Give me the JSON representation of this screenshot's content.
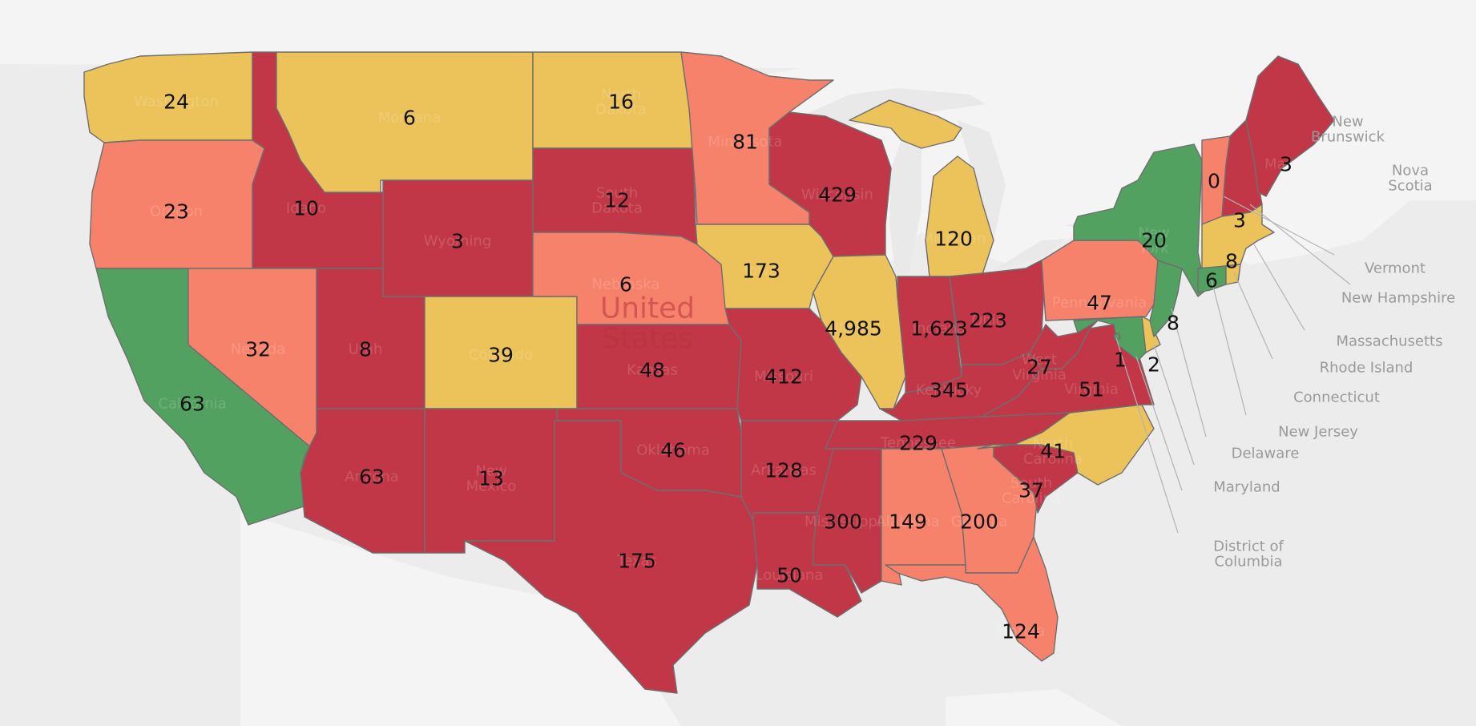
{
  "colors": {
    "dark_red": "#c13747",
    "salmon": "#f7826c",
    "yellow": "#ecc25a",
    "green": "#52a160",
    "land": "#f4f4f4",
    "water": "#e9e9e9",
    "lake": "#e4e4e4"
  },
  "map": {
    "country_label": [
      "United",
      "States"
    ],
    "neighbor_labels": {
      "new_brunswick": [
        "New",
        "Brunswick"
      ],
      "nova_scotia": [
        "Nova",
        "Scotia"
      ]
    },
    "callouts": {
      "vermont": "Vermont",
      "new_hampshire": "New Hampshire",
      "massachusetts": "Massachusetts",
      "rhode_island": "Rhode Island",
      "connecticut": "Connecticut",
      "new_jersey": "New Jersey",
      "delaware": "Delaware",
      "maryland": "Maryland",
      "district_of_columbia": [
        "District of",
        "Columbia"
      ]
    }
  },
  "states": {
    "WA": {
      "name": [
        "Washington"
      ],
      "value": "24",
      "color": "yellow"
    },
    "OR": {
      "name": [
        "Oregon"
      ],
      "value": "23",
      "color": "salmon"
    },
    "CA": {
      "name": [
        "California"
      ],
      "value": "63",
      "color": "green"
    },
    "ID": {
      "name": [
        "Idaho"
      ],
      "value": "10",
      "color": "dark_red"
    },
    "NV": {
      "name": [
        "Nevada"
      ],
      "value": "32",
      "color": "salmon"
    },
    "MT": {
      "name": [
        "Montana"
      ],
      "value": "6",
      "color": "yellow"
    },
    "WY": {
      "name": [
        "Wyoming"
      ],
      "value": "3",
      "color": "dark_red"
    },
    "UT": {
      "name": [
        "Utah"
      ],
      "value": "8",
      "color": "dark_red"
    },
    "AZ": {
      "name": [
        "Arizona"
      ],
      "value": "63",
      "color": "dark_red"
    },
    "CO": {
      "name": [
        "Colorado"
      ],
      "value": "39",
      "color": "yellow"
    },
    "NM": {
      "name": [
        "New",
        "Mexico"
      ],
      "value": "13",
      "color": "dark_red"
    },
    "ND": {
      "name": [
        "North",
        "Dakota"
      ],
      "value": "16",
      "color": "yellow"
    },
    "SD": {
      "name": [
        "South",
        "Dakota"
      ],
      "value": "12",
      "color": "dark_red"
    },
    "NE": {
      "name": [
        "Nebraska"
      ],
      "value": "6",
      "color": "salmon"
    },
    "KS": {
      "name": [
        "Kansas"
      ],
      "value": "48",
      "color": "dark_red"
    },
    "OK": {
      "name": [
        "Oklahoma"
      ],
      "value": "46",
      "color": "dark_red"
    },
    "TX": {
      "name": [
        "Texas"
      ],
      "value": "175",
      "color": "dark_red"
    },
    "MN": {
      "name": [
        "Minnesota"
      ],
      "value": "81",
      "color": "salmon"
    },
    "IA": {
      "name": [
        "Iowa"
      ],
      "value": "173",
      "color": "yellow"
    },
    "MO": {
      "name": [
        "Missouri"
      ],
      "value": "412",
      "color": "dark_red"
    },
    "AR": {
      "name": [
        "Arkansas"
      ],
      "value": "128",
      "color": "dark_red"
    },
    "LA": {
      "name": [
        "Louisiana"
      ],
      "value": "50",
      "color": "dark_red"
    },
    "WI": {
      "name": [
        "Wisconsin"
      ],
      "value": "429",
      "color": "dark_red"
    },
    "IL": {
      "name": [
        "Illinois"
      ],
      "value": "4,985",
      "color": "yellow"
    },
    "MI": {
      "name": [
        "Michigan"
      ],
      "value": "120",
      "color": "yellow"
    },
    "IN": {
      "name": [
        "Indiana"
      ],
      "value": "1,623",
      "color": "dark_red"
    },
    "OH": {
      "name": [
        "Ohio"
      ],
      "value": "223",
      "color": "dark_red"
    },
    "KY": {
      "name": [
        "Kentucky"
      ],
      "value": "345",
      "color": "dark_red"
    },
    "TN": {
      "name": [
        "Tennessee"
      ],
      "value": "229",
      "color": "dark_red"
    },
    "MS": {
      "name": [
        "Mississippi"
      ],
      "value": "300",
      "color": "dark_red"
    },
    "AL": {
      "name": [
        "Alabama"
      ],
      "value": "149",
      "color": "salmon"
    },
    "GA": {
      "name": [
        "Georgia"
      ],
      "value": "200",
      "color": "salmon"
    },
    "FL": {
      "name": [
        "Florida"
      ],
      "value": "124",
      "color": "salmon"
    },
    "SC": {
      "name": [
        "South",
        "Carolina"
      ],
      "value": "37",
      "color": "dark_red"
    },
    "NC": {
      "name": [
        "North",
        "Carolina"
      ],
      "value": "41",
      "color": "yellow"
    },
    "VA": {
      "name": [
        "Virginia"
      ],
      "value": "51",
      "color": "dark_red"
    },
    "WV": {
      "name": [
        "West",
        "Virginia"
      ],
      "value": "27",
      "color": "dark_red"
    },
    "PA": {
      "name": [
        "Pennsylvania"
      ],
      "value": "47",
      "color": "salmon"
    },
    "NY": {
      "name": [
        "New",
        "York"
      ],
      "value": "20",
      "color": "green"
    },
    "VT": {
      "name": [],
      "value": "0",
      "color": "salmon"
    },
    "NH": {
      "name": [],
      "value": "3",
      "color": "dark_red"
    },
    "ME": {
      "name": [
        "Maine"
      ],
      "value": "3",
      "color": "dark_red"
    },
    "MA": {
      "name": [],
      "value": "8",
      "color": "yellow"
    },
    "CT": {
      "name": [],
      "value": "6",
      "color": "green"
    },
    "RI": {
      "name": [],
      "value": "",
      "color": "yellow"
    },
    "NJ": {
      "name": [],
      "value": "8",
      "color": "green"
    },
    "DE": {
      "name": [],
      "value": "2",
      "color": "yellow"
    },
    "MD": {
      "name": [],
      "value": "1",
      "color": "green"
    },
    "DC": {
      "name": [],
      "value": "",
      "color": "green"
    }
  }
}
